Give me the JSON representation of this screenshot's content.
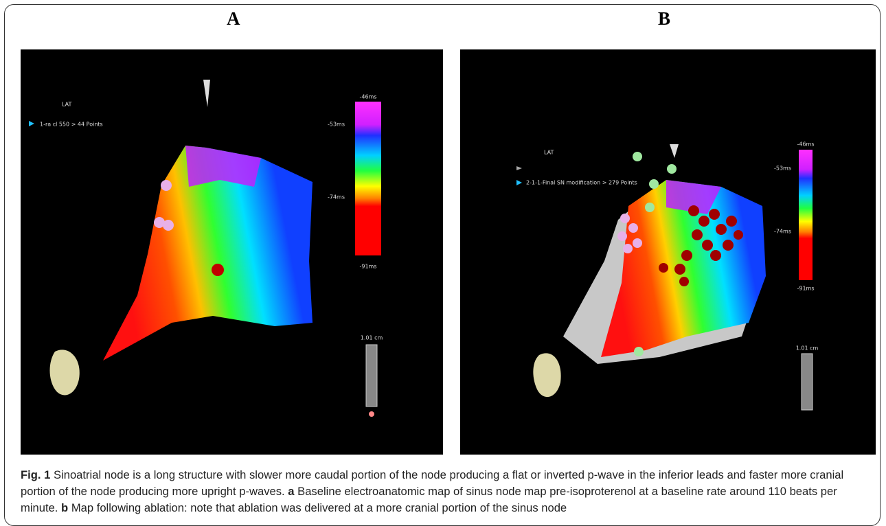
{
  "panels": [
    {
      "label": "A",
      "overlay": {
        "map_label": "LAT",
        "dataset": "1-ra cl 550 > 44 Points",
        "scale_top": "-46ms",
        "scale_mark_1": "-53ms",
        "scale_mark_2": "-74ms",
        "scale_bottom": "-91ms",
        "ruler": "1.01 cm"
      }
    },
    {
      "label": "B",
      "overlay": {
        "map_label": "LAT",
        "dataset": "2-1-1-Final SN modification > 279 Points",
        "scale_top": "-46ms",
        "scale_mark_1": "-53ms",
        "scale_mark_2": "-74ms",
        "scale_bottom": "-91ms",
        "ruler": "1.01 cm"
      }
    }
  ],
  "caption": {
    "figure": "Fig. 1",
    "text_1": "Sinoatrial node is a long structure with slower more caudal portion of the node producing a flat or inverted p-wave in the inferior leads and faster more cranial portion of the node producing more upright p-waves.",
    "a": "a",
    "text_2": "Baseline electroanatomic map of sinus node map pre-isoproterenol at a baseline rate around 110 beats per minute.",
    "b": "b",
    "text_3": "Map following ablation: note that ablation was delivered at a more cranial portion of the sinus node"
  }
}
